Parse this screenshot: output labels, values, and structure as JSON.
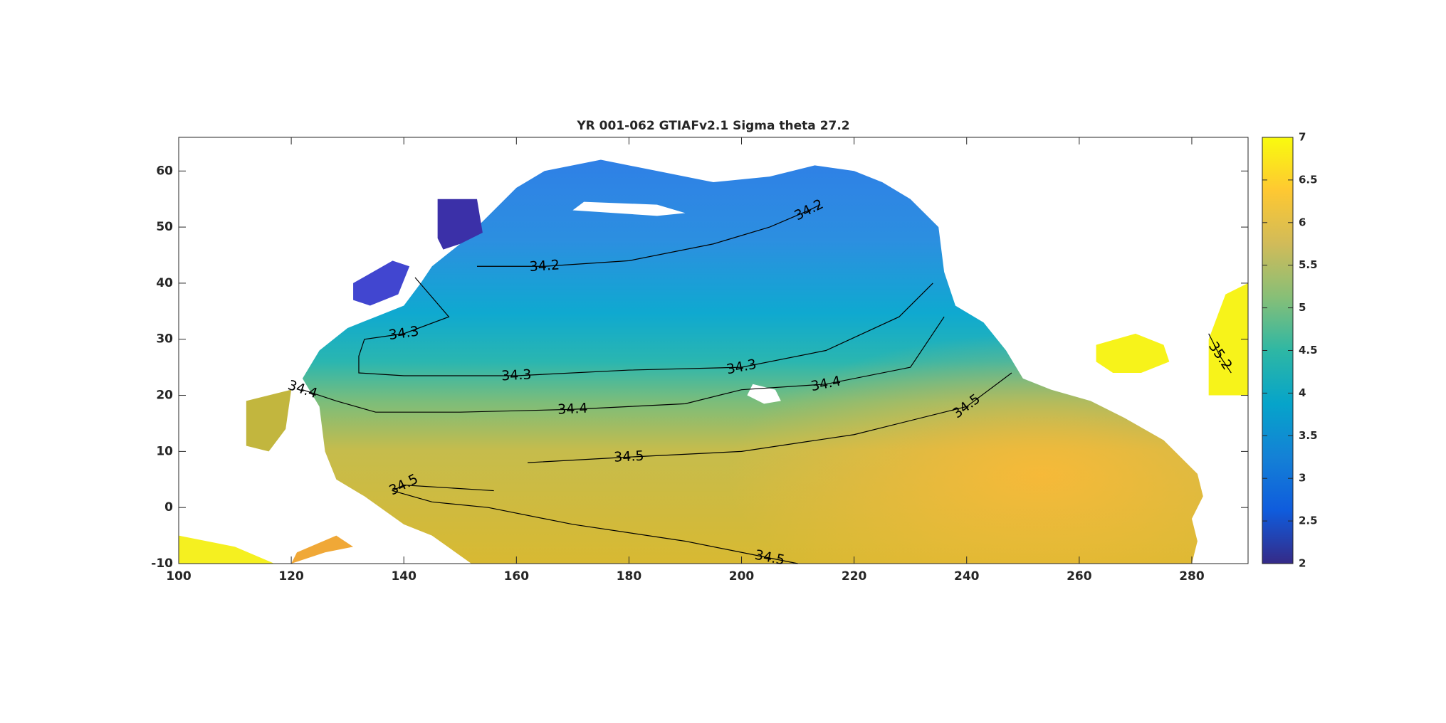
{
  "chart_data": {
    "type": "contour-map",
    "title": "YR 001-062 GTIAFv2.1 Sigma theta 27.2",
    "xlim": [
      100,
      290
    ],
    "xticks": [
      100,
      120,
      140,
      160,
      180,
      200,
      220,
      240,
      260,
      280
    ],
    "ylim": [
      -10,
      66
    ],
    "yticks": [
      -10,
      0,
      10,
      20,
      30,
      40,
      50,
      60
    ],
    "colorbar": {
      "lim": [
        2,
        7
      ],
      "ticks": [
        2,
        2.5,
        3,
        3.5,
        4,
        4.5,
        5,
        5.5,
        6,
        6.5,
        7
      ],
      "colormap": [
        "#352a87",
        "#0f5cdd",
        "#1481d6",
        "#06a4ca",
        "#2eb7a4",
        "#87bf77",
        "#d1bb59",
        "#fec832",
        "#f9fb0e"
      ]
    },
    "contours": [
      {
        "level": 34.2,
        "lon": [
          153,
          165,
          180,
          195,
          205,
          212,
          214
        ],
        "lat": [
          43,
          43,
          44,
          47,
          50,
          53,
          54
        ]
      },
      {
        "level": 34.3,
        "lon": [
          142,
          148,
          140,
          133,
          132,
          132,
          140,
          160,
          180,
          200,
          215,
          228,
          234
        ],
        "lat": [
          41,
          34,
          31,
          30,
          27,
          24,
          23.5,
          23.5,
          24.5,
          25,
          28,
          34,
          40
        ]
      },
      {
        "level": 34.4,
        "lon": [
          122,
          128,
          135,
          150,
          170,
          190,
          200,
          215,
          230,
          236
        ],
        "lat": [
          21,
          19,
          17,
          17,
          17.5,
          18.5,
          21,
          22,
          25,
          34
        ]
      },
      {
        "level": 34.5,
        "lon": [
          162,
          180,
          200,
          220,
          240,
          248
        ],
        "lat": [
          8,
          9,
          10,
          13,
          18,
          24
        ]
      },
      {
        "level": 34.5,
        "lon": [
          156,
          140,
          138,
          145,
          155,
          170,
          190,
          205,
          210
        ],
        "lat": [
          3,
          4,
          3,
          1,
          0,
          -3,
          -6,
          -9,
          -10
        ]
      },
      {
        "level": 35.2,
        "lon": [
          283,
          285,
          287
        ],
        "lat": [
          31,
          27,
          24
        ]
      }
    ]
  }
}
